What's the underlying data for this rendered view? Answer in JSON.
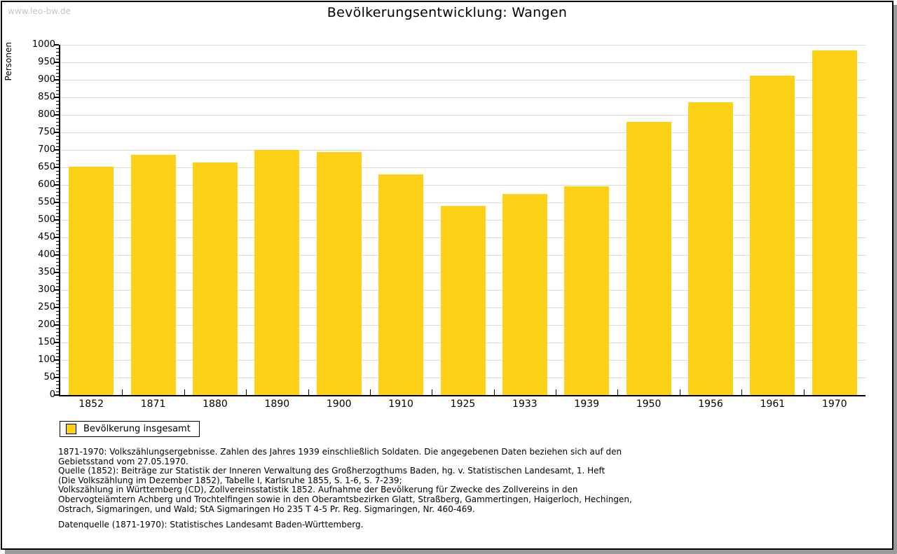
{
  "page": {
    "watermark": "www.leo-bw.de",
    "title": "Bevölkerungsentwicklung: Wangen"
  },
  "chart_data": {
    "type": "bar",
    "title": "Bevölkerungsentwicklung: Wangen",
    "xlabel": "",
    "ylabel": "Personen",
    "categories": [
      "1852",
      "1871",
      "1880",
      "1890",
      "1900",
      "1910",
      "1925",
      "1933",
      "1939",
      "1950",
      "1956",
      "1961",
      "1970"
    ],
    "values": [
      652,
      686,
      664,
      701,
      695,
      630,
      541,
      575,
      597,
      780,
      837,
      913,
      985
    ],
    "series_name": "Bevölkerung insgesamt",
    "ylim": [
      0,
      1000
    ],
    "yticks": [
      0,
      50,
      100,
      150,
      200,
      250,
      300,
      350,
      400,
      450,
      500,
      550,
      600,
      650,
      700,
      750,
      800,
      850,
      900,
      950,
      1000
    ],
    "minor_tick_step": 10,
    "grid": true,
    "legend_position": "below-left",
    "colors": {
      "bar": "#fcd116",
      "grid": "#dcdcdc",
      "axis": "#000000",
      "watermark": "#c6c6c6"
    }
  },
  "legend": {
    "label": "Bevölkerung insgesamt"
  },
  "footnotes": {
    "para1": "1871-1970: Volkszählungsergebnisse. Zahlen des Jahres 1939 einschließlich Soldaten. Die angegebenen Daten beziehen sich auf den\nGebietsstand vom 27.05.1970.\nQuelle (1852): Beiträge zur Statistik der Inneren Verwaltung des Großherzogthums Baden, hg. v. Statistischen Landesamt, 1. Heft\n(Die Volkszählung im Dezember 1852), Tabelle I, Karlsruhe 1855, S. 1-6, S. 7-239;\nVolkszählung in Württemberg (CD), Zollvereinsstatistik 1852. Aufnahme der Bevölkerung für Zwecke des Zollvereins in den\nObervogteiämtern Achberg und Trochtelfingen sowie in den Oberamtsbezirken Glatt, Straßberg, Gammertingen, Haigerloch, Hechingen,\nOstrach, Sigmaringen, und Wald; StA Sigmaringen Ho 235 T 4-5 Pr. Reg. Sigmaringen, Nr. 460-469.",
    "para2": "Datenquelle (1871-1970): Statistisches Landesamt Baden-Württemberg."
  }
}
